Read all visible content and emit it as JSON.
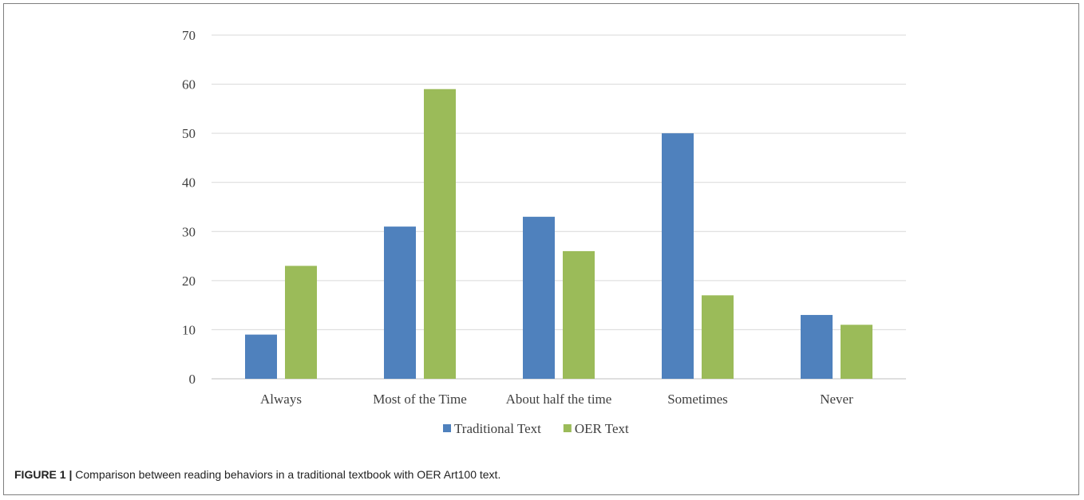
{
  "chart_data": {
    "type": "bar",
    "categories": [
      "Always",
      "Most of the Time",
      "About half the time",
      "Sometimes",
      "Never"
    ],
    "series": [
      {
        "name": "Traditional Text",
        "values": [
          9,
          31,
          33,
          50,
          13
        ],
        "color": "#4f81bd"
      },
      {
        "name": "OER Text",
        "values": [
          23,
          59,
          26,
          17,
          11
        ],
        "color": "#9bbb59"
      }
    ],
    "ylim": [
      0,
      70
    ],
    "yticks": [
      0,
      10,
      20,
      30,
      40,
      50,
      60,
      70
    ],
    "grid": true,
    "legend": "bottom",
    "title": "",
    "xlabel": "",
    "ylabel": ""
  },
  "caption": {
    "label": "FIGURE 1 |",
    "text": " Comparison between reading behaviors in a traditional textbook with OER Art100 text."
  },
  "colors": {
    "gridline": "#d9d9d9",
    "axis": "#bfbfbf"
  }
}
